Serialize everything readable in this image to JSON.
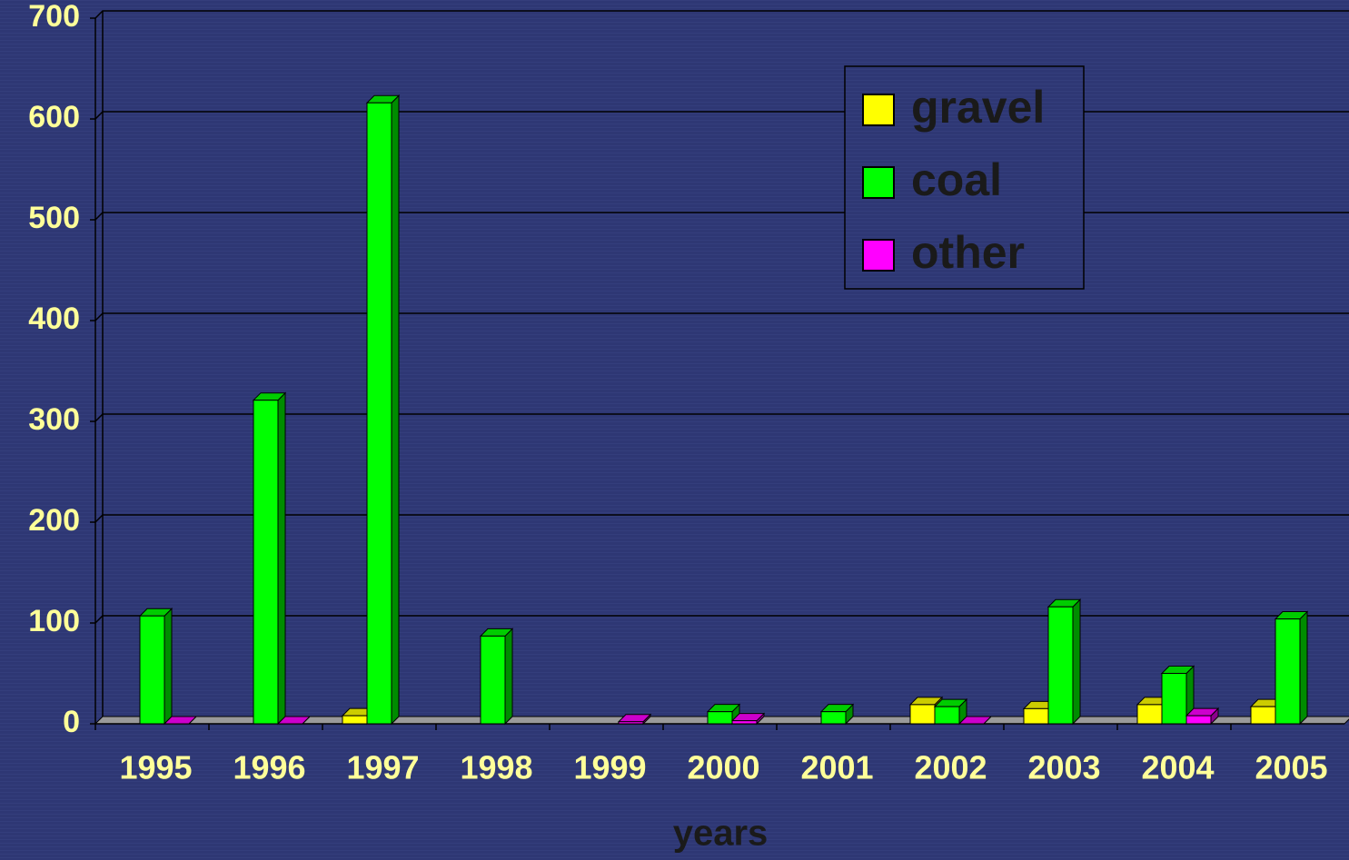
{
  "chart_data": {
    "type": "bar",
    "x_label": "years",
    "categories": [
      "1995",
      "1996",
      "1997",
      "1998",
      "1999",
      "2000",
      "2001",
      "2002",
      "2003",
      "2004",
      "2005"
    ],
    "series": [
      {
        "name": "gravel",
        "color": "#ffff00",
        "values": [
          null,
          null,
          8,
          null,
          null,
          null,
          null,
          19,
          15,
          19,
          17
        ]
      },
      {
        "name": "coal",
        "color": "#00ff00",
        "values": [
          107,
          321,
          616,
          87,
          null,
          12,
          12,
          17,
          116,
          50,
          104
        ]
      },
      {
        "name": "other",
        "color": "#ff00ff",
        "values": [
          0,
          0,
          null,
          null,
          2,
          3,
          null,
          0,
          null,
          8,
          null
        ]
      }
    ],
    "ylim": [
      0,
      700
    ],
    "yticks": [
      0,
      100,
      200,
      300,
      400,
      500,
      600,
      700
    ],
    "grid": true,
    "legend": "upper right"
  }
}
